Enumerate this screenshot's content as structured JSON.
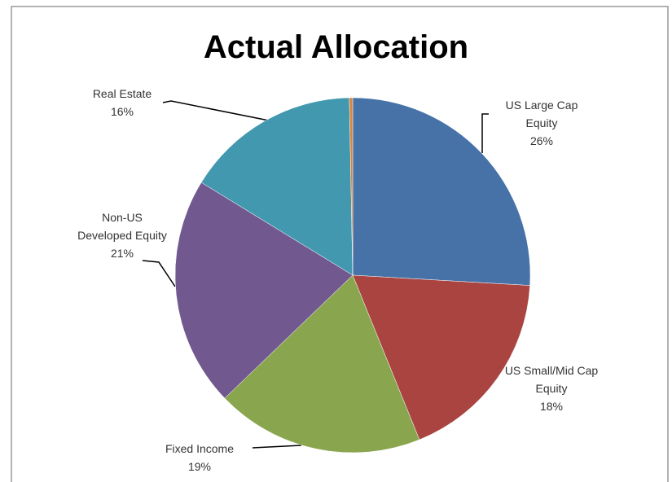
{
  "chart_data": {
    "type": "pie",
    "title": "Actual Allocation",
    "categories": [
      "US Large Cap Equity",
      "US Small/Mid Cap Equity",
      "Fixed Income",
      "Non-US Developed Equity",
      "Real Estate",
      null
    ],
    "values": [
      26,
      18,
      19,
      21,
      16,
      0.3
    ],
    "value_labels": [
      "26%",
      "18%",
      "19%",
      "21%",
      "16%",
      null
    ],
    "colors": [
      "#4672a8",
      "#a94441",
      "#89a54e",
      "#71588f",
      "#4298af",
      "#db843d"
    ]
  }
}
